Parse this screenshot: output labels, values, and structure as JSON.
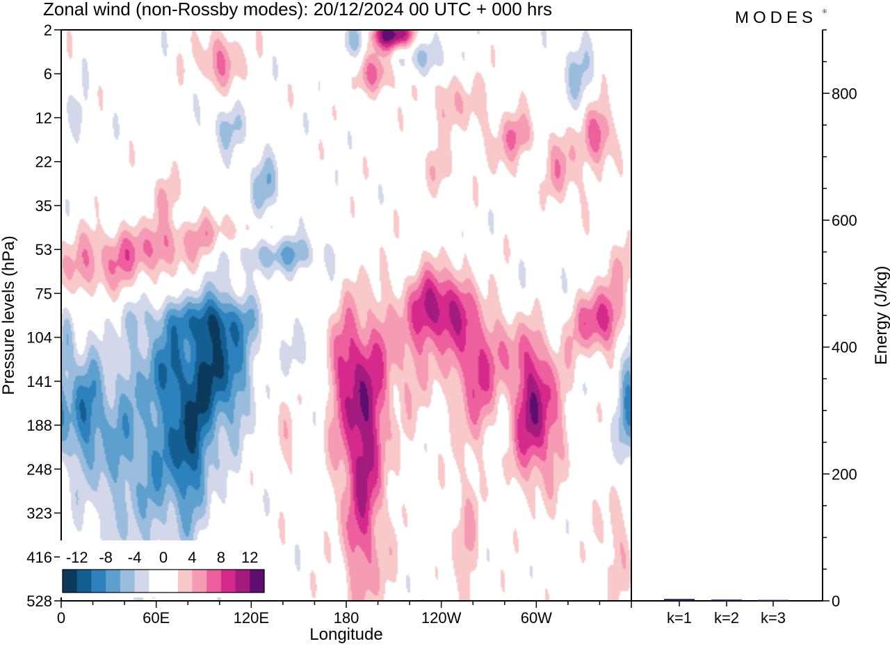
{
  "title": "Zonal wind (non-Rossby modes):  20/12/2024  00 UTC  + 000 hrs",
  "logo": "MODES",
  "colors": {
    "neg": [
      "#0b3a5c",
      "#135f91",
      "#2b82bd",
      "#5d9fcd",
      "#9bbddd",
      "#d2d8ea"
    ],
    "zero": "#ffffff",
    "pos": [
      "#f9c9c9",
      "#f59bb3",
      "#ee5f9e",
      "#d5298c",
      "#a41b7e",
      "#5e0e6e"
    ],
    "frame": "#000000",
    "bar": "#1a1f5c"
  },
  "chart_data": [
    {
      "type": "heatmap",
      "name": "Zonal wind field",
      "xlabel": "Longitude",
      "ylabel": "Pressure levels (hPa)",
      "x_ticks": [
        "0",
        "60E",
        "120E",
        "180",
        "120W",
        "60W"
      ],
      "x_tick_values": [
        0,
        60,
        120,
        180,
        240,
        300
      ],
      "xlim": [
        0,
        360
      ],
      "y_ticks": [
        "2",
        "6",
        "12",
        "22",
        "35",
        "53",
        "75",
        "104",
        "141",
        "188",
        "248",
        "323",
        "416",
        "528"
      ],
      "colorbar": {
        "labels": [
          "-12",
          "-8",
          "-4",
          "0",
          "4",
          "8",
          "12"
        ],
        "label_values": [
          -12,
          -8,
          -4,
          0,
          4,
          8,
          12
        ],
        "levels": [
          -14,
          -12,
          -10,
          -8,
          -6,
          -4,
          -2,
          2,
          4,
          6,
          8,
          10,
          12,
          14
        ]
      },
      "features": [
        {
          "lon": 14,
          "lev": 8.7,
          "value": -6.5,
          "wlon": 10,
          "wlev": 0.9
        },
        {
          "lon": 4,
          "lev": 7.0,
          "value": -5,
          "wlon": 4,
          "wlev": 0.5
        },
        {
          "lon": 48,
          "lev": 9.0,
          "value": -5,
          "wlon": 26,
          "wlev": 1.4
        },
        {
          "lon": 80,
          "lev": 9.5,
          "value": -8,
          "wlon": 10,
          "wlev": 1.2
        },
        {
          "lon": 66,
          "lev": 7.6,
          "value": -5,
          "wlon": 12,
          "wlev": 0.6
        },
        {
          "lon": 100,
          "lev": 7.6,
          "value": -11,
          "wlon": 14,
          "wlev": 1.1
        },
        {
          "lon": 84,
          "lev": 6.6,
          "value": -5,
          "wlon": 28,
          "wlev": 0.35
        },
        {
          "lon": 52,
          "lev": 10.9,
          "value": -3,
          "wlon": 22,
          "wlev": 1.4
        },
        {
          "lon": 138,
          "lev": 5.1,
          "value": -6,
          "wlon": 22,
          "wlev": 0.3
        },
        {
          "lon": 150,
          "lev": 7.4,
          "value": -3,
          "wlon": 5,
          "wlev": 0.5
        },
        {
          "lon": 128,
          "lev": 3.5,
          "value": -5,
          "wlon": 7,
          "wlev": 0.5
        },
        {
          "lon": 103,
          "lev": 2.2,
          "value": -4,
          "wlon": 10,
          "wlev": 0.4
        },
        {
          "lon": 228,
          "lev": 0.6,
          "value": -5,
          "wlon": 12,
          "wlev": 0.35
        },
        {
          "lon": 186,
          "lev": 0.2,
          "value": -4,
          "wlon": 8,
          "wlev": 0.3
        },
        {
          "lon": 325,
          "lev": 1.0,
          "value": -4,
          "wlon": 8,
          "wlev": 0.6
        },
        {
          "lon": 316,
          "lev": 6.2,
          "value": -3,
          "wlon": 14,
          "wlev": 0.7
        },
        {
          "lon": 358,
          "lev": 8.5,
          "value": -5,
          "wlon": 4,
          "wlev": 1.0
        },
        {
          "lon": 10,
          "lev": 2.0,
          "value": -3,
          "wlon": 6,
          "wlev": 0.4
        },
        {
          "lon": 210,
          "lev": 0.1,
          "value": 14,
          "wlon": 10,
          "wlev": 0.25
        },
        {
          "lon": 190,
          "lev": 9.2,
          "value": 11,
          "wlon": 11,
          "wlev": 1.8
        },
        {
          "lon": 178,
          "lev": 7.6,
          "value": 4,
          "wlon": 8,
          "wlev": 0.8
        },
        {
          "lon": 192,
          "lev": 12.3,
          "value": 3.5,
          "wlon": 10,
          "wlev": 1.1
        },
        {
          "lon": 240,
          "lev": 6.3,
          "value": 10,
          "wlon": 14,
          "wlev": 0.6
        },
        {
          "lon": 220,
          "lev": 7.4,
          "value": 4,
          "wlon": 20,
          "wlev": 1.0
        },
        {
          "lon": 262,
          "lev": 8.0,
          "value": 7,
          "wlon": 7,
          "wlev": 0.9
        },
        {
          "lon": 300,
          "lev": 8.8,
          "value": 11,
          "wlon": 11,
          "wlev": 1.1
        },
        {
          "lon": 280,
          "lev": 7.3,
          "value": 4,
          "wlon": 20,
          "wlev": 0.7
        },
        {
          "lon": 338,
          "lev": 6.6,
          "value": 9,
          "wlon": 14,
          "wlev": 0.55
        },
        {
          "lon": 20,
          "lev": 5.5,
          "value": 4,
          "wlon": 24,
          "wlev": 0.45
        },
        {
          "lon": 55,
          "lev": 5.0,
          "value": 5,
          "wlon": 30,
          "wlev": 0.4
        },
        {
          "lon": 100,
          "lev": 4.6,
          "value": 3,
          "wlon": 26,
          "wlev": 0.3
        },
        {
          "lon": 100,
          "lev": 0.7,
          "value": 6,
          "wlon": 10,
          "wlev": 0.45
        },
        {
          "lon": 200,
          "lev": 1.0,
          "value": 6,
          "wlon": 10,
          "wlev": 0.35
        },
        {
          "lon": 248,
          "lev": 1.6,
          "value": 4,
          "wlon": 12,
          "wlev": 0.5
        },
        {
          "lon": 340,
          "lev": 2.4,
          "value": 7,
          "wlon": 8,
          "wlev": 0.5
        },
        {
          "lon": 318,
          "lev": 3.2,
          "value": 5,
          "wlon": 8,
          "wlev": 0.6
        },
        {
          "lon": 280,
          "lev": 2.5,
          "value": 3.5,
          "wlon": 10,
          "wlev": 0.6
        },
        {
          "lon": 64,
          "lev": 3.8,
          "value": 3,
          "wlon": 8,
          "wlev": 0.4
        },
        {
          "lon": 255,
          "lev": 11.5,
          "value": 4,
          "wlon": 6,
          "wlev": 1.6
        },
        {
          "lon": 350,
          "lev": 11.6,
          "value": 4,
          "wlon": 7,
          "wlev": 0.9
        },
        {
          "lon": 292,
          "lev": 2.4,
          "value": 3,
          "wlon": 8,
          "wlev": 0.3
        },
        {
          "lon": 140,
          "lev": 9.3,
          "value": 3,
          "wlon": 5,
          "wlev": 0.8
        },
        {
          "lon": 240,
          "lev": 3.2,
          "value": 3,
          "wlon": 8,
          "wlev": 0.4
        }
      ]
    },
    {
      "type": "bar",
      "name": "Energy spectrum",
      "ylabel": "Energy (J/kg)",
      "categories": [
        "k=1",
        "k=2",
        "k=3"
      ],
      "values": [
        3,
        2,
        1.5
      ],
      "ylim": [
        0,
        900
      ],
      "y_ticks": [
        "0",
        "200",
        "400",
        "600",
        "800"
      ],
      "y_tick_values": [
        0,
        200,
        400,
        600,
        800
      ]
    }
  ]
}
